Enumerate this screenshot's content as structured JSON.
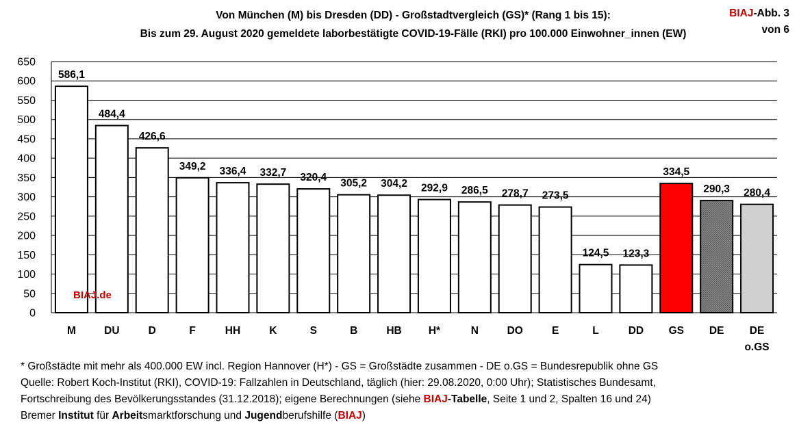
{
  "title_line1": "Von München (M) bis Dresden (DD)  - Großstadtvergleich (GS)* (Rang 1 bis 15):",
  "title_line2": "Bis zum 29. August 2020 gemeldete laborbestätigte COVID-19-Fälle (RKI) pro 100.000 Einwohner_innen (EW)",
  "badge": {
    "brand": "BIAJ",
    "rest1": "-Abb. 3",
    "line2": "von 6"
  },
  "watermark": "BIAJ.de",
  "footer": {
    "line1": "* Großstädte mit mehr als 400.000 EW incl. Region Hannover (H*) - GS = Großstädte zusammen - DE o.GS = Bundesrepublik ohne GS",
    "line2": "Quelle: Robert Koch-Institut (RKI), COVID-19: Fallzahlen in Deutschland, täglich (hier: 29.08.2020, 0:00 Uhr); Statistisches Bundesamt,",
    "line3_a": "Fortschreibung des Bevölkerungsstandes (31.12.2018); eigene Berechnungen (siehe ",
    "line3_brand": "BIAJ",
    "line3_b": "-Tabelle",
    "line3_c": ", Seite 1 und 2, Spalten 16 und 24)",
    "line4_a": "Bremer ",
    "line4_b": "Institut",
    "line4_c": " für ",
    "line4_d": "Arbeit",
    "line4_e": "smarktforschung und ",
    "line4_f": "Jugend",
    "line4_g": "berufshilfe (",
    "line4_brand": "BIAJ",
    "line4_h": ")"
  },
  "chart_data": {
    "type": "bar",
    "categories": [
      "M",
      "DU",
      "D",
      "F",
      "HH",
      "K",
      "S",
      "B",
      "HB",
      "H*",
      "N",
      "DO",
      "E",
      "L",
      "DD",
      "GS",
      "DE",
      "DE\no.GS"
    ],
    "values": [
      586.1,
      484.4,
      426.6,
      349.2,
      336.4,
      332.7,
      320.4,
      305.2,
      304.2,
      292.9,
      286.5,
      278.7,
      273.5,
      124.5,
      123.3,
      334.5,
      290.3,
      280.4
    ],
    "value_labels": [
      "586,1",
      "484,4",
      "426,6",
      "349,2",
      "336,4",
      "332,7",
      "320,4",
      "305,2",
      "304,2",
      "292,9",
      "286,5",
      "278,7",
      "273,5",
      "124,5",
      "123,3",
      "334,5",
      "290,3",
      "280,4"
    ],
    "bar_colors": [
      "#ffffff",
      "#ffffff",
      "#ffffff",
      "#ffffff",
      "#ffffff",
      "#ffffff",
      "#ffffff",
      "#ffffff",
      "#ffffff",
      "#ffffff",
      "#ffffff",
      "#ffffff",
      "#ffffff",
      "#ffffff",
      "#ffffff",
      "#ff0000",
      "#808080",
      "#d0d0d0"
    ],
    "ylim": [
      0,
      650
    ],
    "yticks": [
      0,
      50,
      100,
      150,
      200,
      250,
      300,
      350,
      400,
      450,
      500,
      550,
      600,
      650
    ],
    "grid": true,
    "xlabel": "",
    "ylabel": ""
  }
}
